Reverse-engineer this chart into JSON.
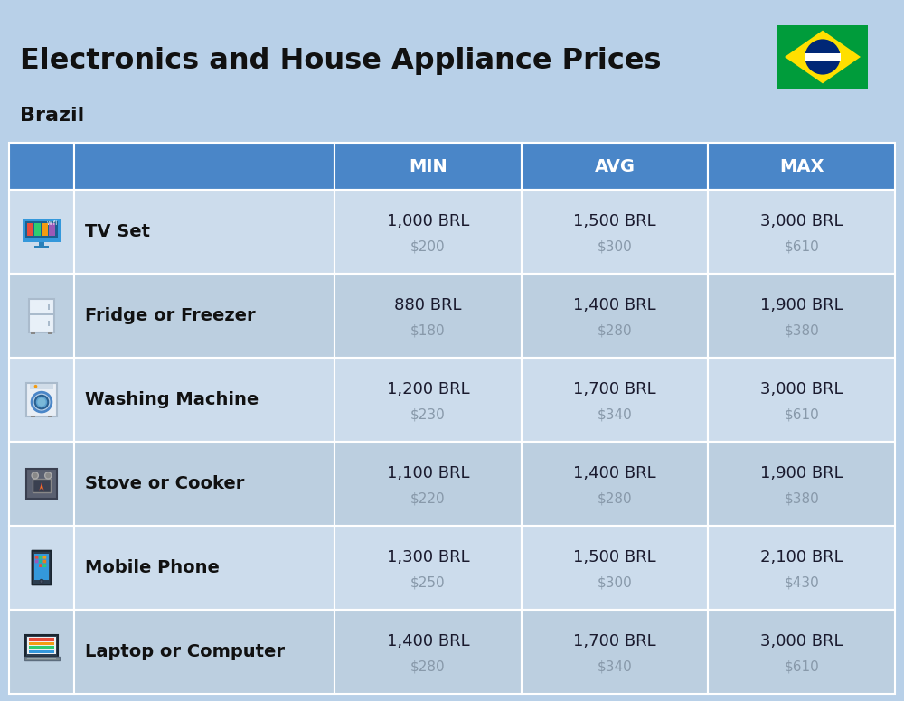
{
  "title": "Electronics and House Appliance Prices",
  "subtitle": "Brazil",
  "bg_color": "#b8d0e8",
  "header_color": "#4a86c8",
  "header_text_color": "#ffffff",
  "row_bg_light": "#ccdcec",
  "row_bg_dark": "#bccfe0",
  "border_color": "#ffffff",
  "name_text_color": "#111111",
  "value_text_color": "#1a1a2e",
  "sub_value_text_color": "#8899aa",
  "columns": [
    "MIN",
    "AVG",
    "MAX"
  ],
  "rows": [
    {
      "name": "TV Set",
      "min_brl": "1,000 BRL",
      "min_usd": "$200",
      "avg_brl": "1,500 BRL",
      "avg_usd": "$300",
      "max_brl": "3,000 BRL",
      "max_usd": "$610"
    },
    {
      "name": "Fridge or Freezer",
      "min_brl": "880 BRL",
      "min_usd": "$180",
      "avg_brl": "1,400 BRL",
      "avg_usd": "$280",
      "max_brl": "1,900 BRL",
      "max_usd": "$380"
    },
    {
      "name": "Washing Machine",
      "min_brl": "1,200 BRL",
      "min_usd": "$230",
      "avg_brl": "1,700 BRL",
      "avg_usd": "$340",
      "max_brl": "3,000 BRL",
      "max_usd": "$610"
    },
    {
      "name": "Stove or Cooker",
      "min_brl": "1,100 BRL",
      "min_usd": "$220",
      "avg_brl": "1,400 BRL",
      "avg_usd": "$280",
      "max_brl": "1,900 BRL",
      "max_usd": "$380"
    },
    {
      "name": "Mobile Phone",
      "min_brl": "1,300 BRL",
      "min_usd": "$250",
      "avg_brl": "1,500 BRL",
      "avg_usd": "$300",
      "max_brl": "2,100 BRL",
      "max_usd": "$430"
    },
    {
      "name": "Laptop or Computer",
      "min_brl": "1,400 BRL",
      "min_usd": "$280",
      "avg_brl": "1,700 BRL",
      "avg_usd": "$340",
      "max_brl": "3,000 BRL",
      "max_usd": "$610"
    }
  ]
}
